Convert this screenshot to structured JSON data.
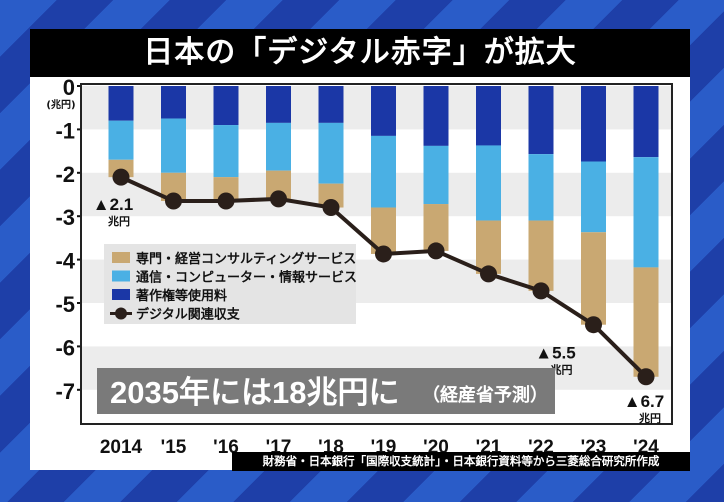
{
  "title": "日本の「デジタル赤字」が拡大",
  "source": "財務省・日本銀行「国際収支統計」・日本銀行資料等から三菱総合研究所作成",
  "chart_data": {
    "type": "bar",
    "stacked": true,
    "categories": [
      "2014",
      "'15",
      "'16",
      "'17",
      "'18",
      "'19",
      "'20",
      "'21",
      "'22",
      "'23",
      "'24"
    ],
    "ylabel": "(兆円)",
    "ylim": [
      -7.75,
      0
    ],
    "yticks": [
      0,
      -1,
      -2,
      -3,
      -4,
      -5,
      -6,
      -7
    ],
    "grid": "alternating bands",
    "legend_position": "center-left",
    "series": [
      {
        "name": "著作権等使用料",
        "type": "bar",
        "color": "#1b37a6",
        "values": [
          -0.8,
          -0.75,
          -0.9,
          -0.85,
          -0.85,
          -1.15,
          -1.38,
          -1.37,
          -1.57,
          -1.74,
          -1.64
        ]
      },
      {
        "name": "通信・コンピューター・情報サービス",
        "type": "bar",
        "color": "#4ab0e4",
        "values": [
          -0.9,
          -1.25,
          -1.2,
          -1.1,
          -1.4,
          -1.65,
          -1.34,
          -1.73,
          -1.53,
          -1.63,
          -2.54
        ]
      },
      {
        "name": "専門・経営コンサルティングサービス",
        "type": "bar",
        "color": "#c9a872",
        "values": [
          -0.4,
          -0.65,
          -0.55,
          -0.65,
          -0.55,
          -1.07,
          -1.08,
          -1.23,
          -1.62,
          -2.13,
          -2.52
        ]
      },
      {
        "name": "デジタル関連収支",
        "type": "line",
        "color": "#2a1f1a",
        "values": [
          -2.1,
          -2.65,
          -2.65,
          -2.6,
          -2.8,
          -3.87,
          -3.8,
          -4.33,
          -4.72,
          -5.5,
          -6.7
        ]
      }
    ],
    "annotations": [
      {
        "category": "2014",
        "text": "▲2.1",
        "unit": "兆円"
      },
      {
        "category": "'23",
        "text": "▲5.5",
        "unit": "兆円"
      },
      {
        "category": "'24",
        "text": "▲6.7",
        "unit": "兆円"
      }
    ],
    "callout": {
      "main": "2035年には18兆円に",
      "sub": "（経産省予測）"
    }
  }
}
